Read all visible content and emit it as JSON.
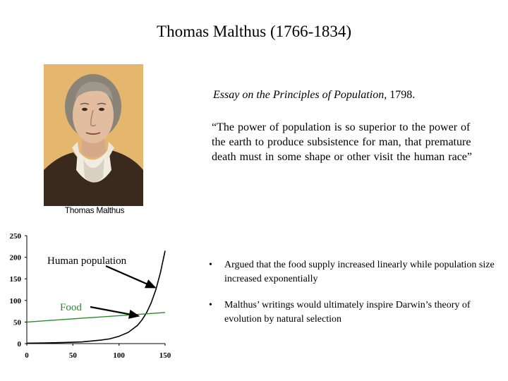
{
  "title": "Thomas Malthus (1766-1834)",
  "portrait": {
    "caption": "Thomas Malthus"
  },
  "essay": {
    "title_italic": "Essay on the Principles of Population",
    "suffix": ", 1798."
  },
  "quote": "“The power of population is so superior to the power of the earth to produce subsistence for man, that premature death must in some shape or other visit the human race”",
  "bullets": [
    "Argued that the food supply increased linearly while population size increased exponentially",
    "Malthus’ writings would ultimately inspire Darwin’s theory of evolution by natural selection"
  ],
  "bullet_symbol": "•",
  "chart_data": {
    "type": "line",
    "x_ticks": [
      "0",
      "50",
      "100",
      "150"
    ],
    "y_ticks": [
      "0",
      "50",
      "100",
      "150",
      "200",
      "250"
    ],
    "xlim": [
      0,
      150
    ],
    "ylim": [
      0,
      250
    ],
    "series": [
      {
        "name": "Human population",
        "color": "#000000",
        "x": [
          0,
          20,
          40,
          60,
          80,
          90,
          100,
          110,
          120,
          125,
          130,
          135,
          140,
          145,
          150
        ],
        "y": [
          1,
          1.5,
          2.5,
          4,
          8,
          11,
          17,
          26,
          42,
          55,
          72,
          95,
          125,
          165,
          215
        ]
      },
      {
        "name": "Food",
        "color": "#2a8c2a",
        "x": [
          0,
          150
        ],
        "y": [
          50,
          72
        ]
      }
    ],
    "annotations": [
      {
        "text": "Human population",
        "arrow_to": [
          139,
          130
        ]
      },
      {
        "text": "Food",
        "arrow_to": [
          121,
          64
        ]
      }
    ],
    "grid": false,
    "legend": "none"
  },
  "colors": {
    "portrait_bg": "#e5b66e",
    "food_line": "#2a8c2a",
    "population_line": "#000000"
  }
}
